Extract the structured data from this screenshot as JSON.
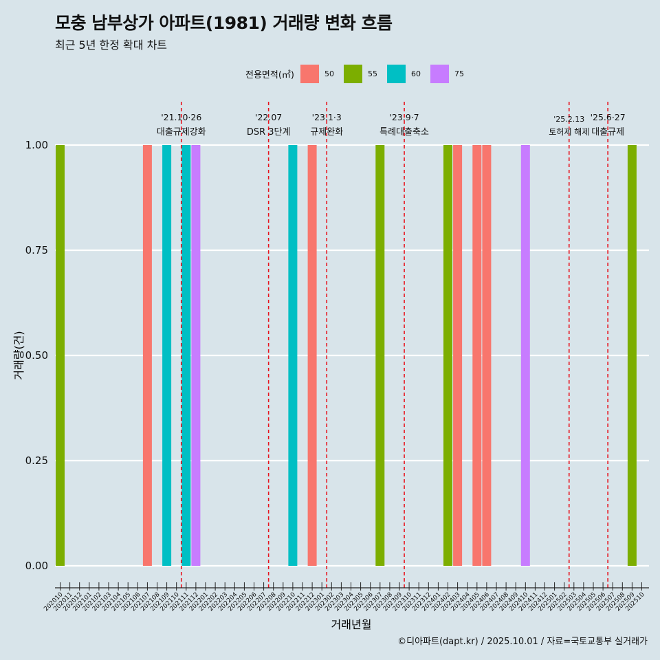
{
  "header": {
    "title": "모충 남부상가 아파트(1981) 거래량 변화 흐름",
    "subtitle": "최근 5년 한정 확대 차트"
  },
  "legend": {
    "title": "전용면적(㎡)",
    "items": [
      {
        "label": "50",
        "color": "#F8766D"
      },
      {
        "label": "55",
        "color": "#7CAE00"
      },
      {
        "label": "60",
        "color": "#00BFC4"
      },
      {
        "label": "75",
        "color": "#C77CFF"
      }
    ]
  },
  "caption": "©디아파트(dapt.kr) / 2025.10.01 / 자료=국토교통부 실거래가",
  "chart_data": {
    "type": "bar",
    "xlabel": "거래년월",
    "ylabel": "거래량(건)",
    "ylim": [
      0,
      1
    ],
    "yticks": [
      "0.00",
      "0.25",
      "0.50",
      "0.75",
      "1.00"
    ],
    "grid": true,
    "months": [
      "202010",
      "202011",
      "202012",
      "202101",
      "202102",
      "202103",
      "202104",
      "202105",
      "202106",
      "202107",
      "202108",
      "202109",
      "202110",
      "202111",
      "202112",
      "202201",
      "202202",
      "202203",
      "202204",
      "202205",
      "202206",
      "202207",
      "202208",
      "202209",
      "202210",
      "202211",
      "202212",
      "202301",
      "202302",
      "202303",
      "202304",
      "202305",
      "202306",
      "202307",
      "202308",
      "202309",
      "202310",
      "202311",
      "202312",
      "202401",
      "202402",
      "202403",
      "202404",
      "202405",
      "202406",
      "202407",
      "202408",
      "202409",
      "202410",
      "202411",
      "202412",
      "202501",
      "202502",
      "202503",
      "202504",
      "202505",
      "202506",
      "202507",
      "202508",
      "202509",
      "202510"
    ],
    "bars": [
      {
        "month": "202010",
        "area": "55",
        "value": 1
      },
      {
        "month": "202107",
        "area": "50",
        "value": 1
      },
      {
        "month": "202109",
        "area": "60",
        "value": 1
      },
      {
        "month": "202111",
        "area": "60",
        "value": 1
      },
      {
        "month": "202112",
        "area": "75",
        "value": 1
      },
      {
        "month": "202210",
        "area": "60",
        "value": 1
      },
      {
        "month": "202212",
        "area": "50",
        "value": 1
      },
      {
        "month": "202307",
        "area": "55",
        "value": 1
      },
      {
        "month": "202402",
        "area": "55",
        "value": 1
      },
      {
        "month": "202403",
        "area": "50",
        "value": 1
      },
      {
        "month": "202405",
        "area": "50",
        "value": 1
      },
      {
        "month": "202406",
        "area": "50",
        "value": 1
      },
      {
        "month": "202410",
        "area": "75",
        "value": 1
      },
      {
        "month": "202509",
        "area": "55",
        "value": 1
      }
    ],
    "events": [
      {
        "month_index": 12.5,
        "date": "'21.10·26",
        "label": "대출규제강화"
      },
      {
        "month_index": 21.5,
        "date": "'22.07",
        "label": "DSR 3단계"
      },
      {
        "month_index": 27.5,
        "date": "'23.1·3",
        "label": "규제완화"
      },
      {
        "month_index": 35.5,
        "date": "'23.9·7",
        "label": "특례대출축소"
      },
      {
        "month_index": 52.5,
        "date": "'25.2.13",
        "label": "토허제 해제"
      },
      {
        "month_index": 56.5,
        "date": "'25.6·27",
        "label": "대출규제"
      }
    ]
  }
}
